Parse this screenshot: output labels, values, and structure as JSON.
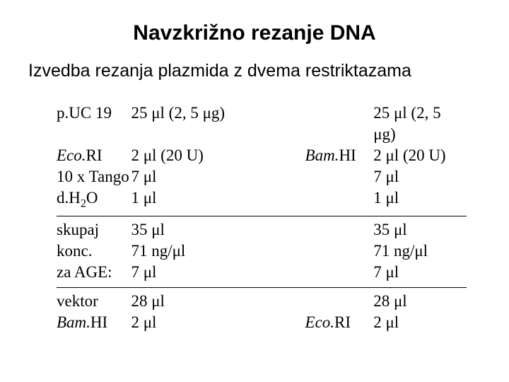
{
  "title": "Navzkrižno rezanje DNA",
  "subtitle": "Izvedba rezanja plazmida z dvema restriktazama",
  "mu": "μ",
  "block1": {
    "left_labels": [
      "p.UC 19",
      "Eco.",
      "10 x Tango",
      "d.H"
    ],
    "left_label_eco_tail": "RI",
    "left_label_dh2o_sub": "2",
    "left_label_dh2o_tail": "O",
    "left_values": [
      "25 μl (2, 5 μg)",
      " 2 μl (20 U)",
      "7 μl",
      "1 μl"
    ],
    "right_label": "Bam.",
    "right_label_tail": "HI",
    "right_values": [
      "25 μl (2, 5 μg)",
      " 2 μl (20 U)",
      " 7 μl",
      " 1 μl"
    ]
  },
  "block2": {
    "left_labels": [
      "skupaj",
      "konc.",
      "za AGE:"
    ],
    "left_values": [
      "35 μl",
      "71 ng/μl",
      "  7 μl"
    ],
    "right_values": [
      "35 μl",
      "71 ng/μl",
      " 7 μl"
    ]
  },
  "block3": {
    "left_labels": [
      "vektor",
      "Bam."
    ],
    "left_label_bam_tail": "HI",
    "left_values": [
      "28 μl",
      " 2 μl"
    ],
    "right_label": "Eco.",
    "right_label_tail": "RI",
    "right_values": [
      "28 μl",
      " 2 μl"
    ]
  }
}
